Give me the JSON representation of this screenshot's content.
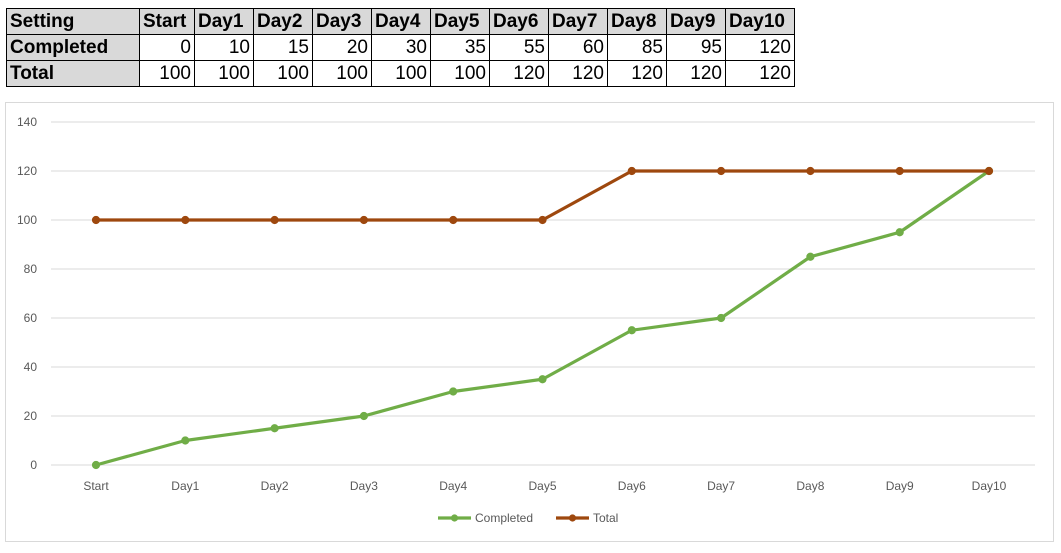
{
  "table": {
    "header": [
      "Setting",
      "Start",
      "Day1",
      "Day2",
      "Day3",
      "Day4",
      "Day5",
      "Day6",
      "Day7",
      "Day8",
      "Day9",
      "Day10"
    ],
    "rows": [
      {
        "label": "Completed",
        "values": [
          "0",
          "10",
          "15",
          "20",
          "30",
          "35",
          "55",
          "60",
          "85",
          "95",
          "120"
        ]
      },
      {
        "label": "Total",
        "values": [
          "100",
          "100",
          "100",
          "100",
          "100",
          "100",
          "120",
          "120",
          "120",
          "120",
          "120"
        ]
      }
    ]
  },
  "colors": {
    "header_bg": "#d9d9d9",
    "completed": "#70ad47",
    "total": "#9e480e",
    "grid": "#d9d9d9"
  },
  "chart_data": {
    "type": "line",
    "categories": [
      "Start",
      "Day1",
      "Day2",
      "Day3",
      "Day4",
      "Day5",
      "Day6",
      "Day7",
      "Day8",
      "Day9",
      "Day10"
    ],
    "series": [
      {
        "name": "Completed",
        "values": [
          0,
          10,
          15,
          20,
          30,
          35,
          55,
          60,
          85,
          95,
          120
        ],
        "color": "#70ad47"
      },
      {
        "name": "Total",
        "values": [
          100,
          100,
          100,
          100,
          100,
          100,
          120,
          120,
          120,
          120,
          120
        ],
        "color": "#9e480e"
      }
    ],
    "yticks": [
      "0",
      "20",
      "40",
      "60",
      "80",
      "100",
      "120",
      "140"
    ],
    "ylim": [
      0,
      140
    ],
    "grid": true,
    "legend": "bottom",
    "title": "",
    "xlabel": "",
    "ylabel": ""
  }
}
